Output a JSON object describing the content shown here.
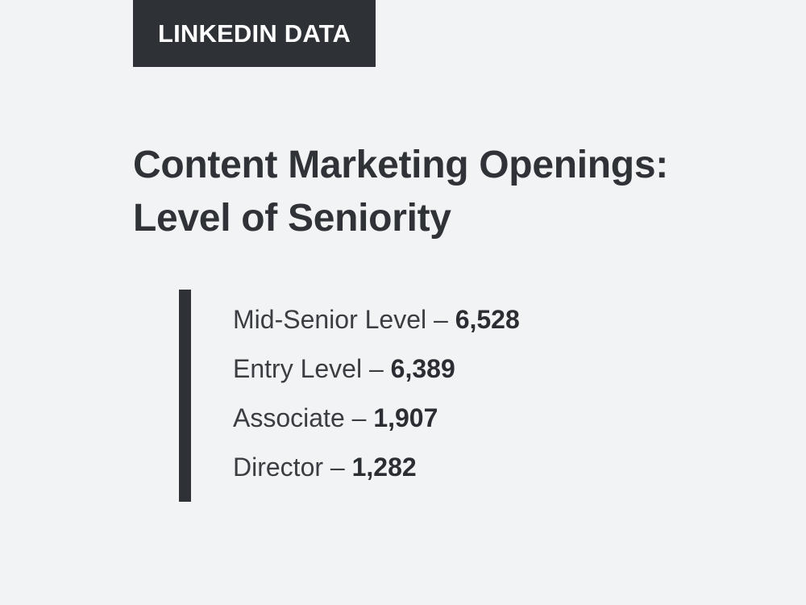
{
  "tag": {
    "label": "LINKEDIN DATA"
  },
  "title": {
    "line1": "Content Marketing Openings:",
    "line2": "Level of Seniority"
  },
  "separator": " – ",
  "items": [
    {
      "label": "Mid-Senior Level",
      "value": "6,528"
    },
    {
      "label": "Entry Level",
      "value": "6,389"
    },
    {
      "label": "Associate",
      "value": "1,907"
    },
    {
      "label": "Director",
      "value": "1,282"
    }
  ],
  "colors": {
    "background": "#f2f3f5",
    "dark": "#2e3236",
    "text": "#2f3236",
    "tag_text": "#ffffff"
  }
}
